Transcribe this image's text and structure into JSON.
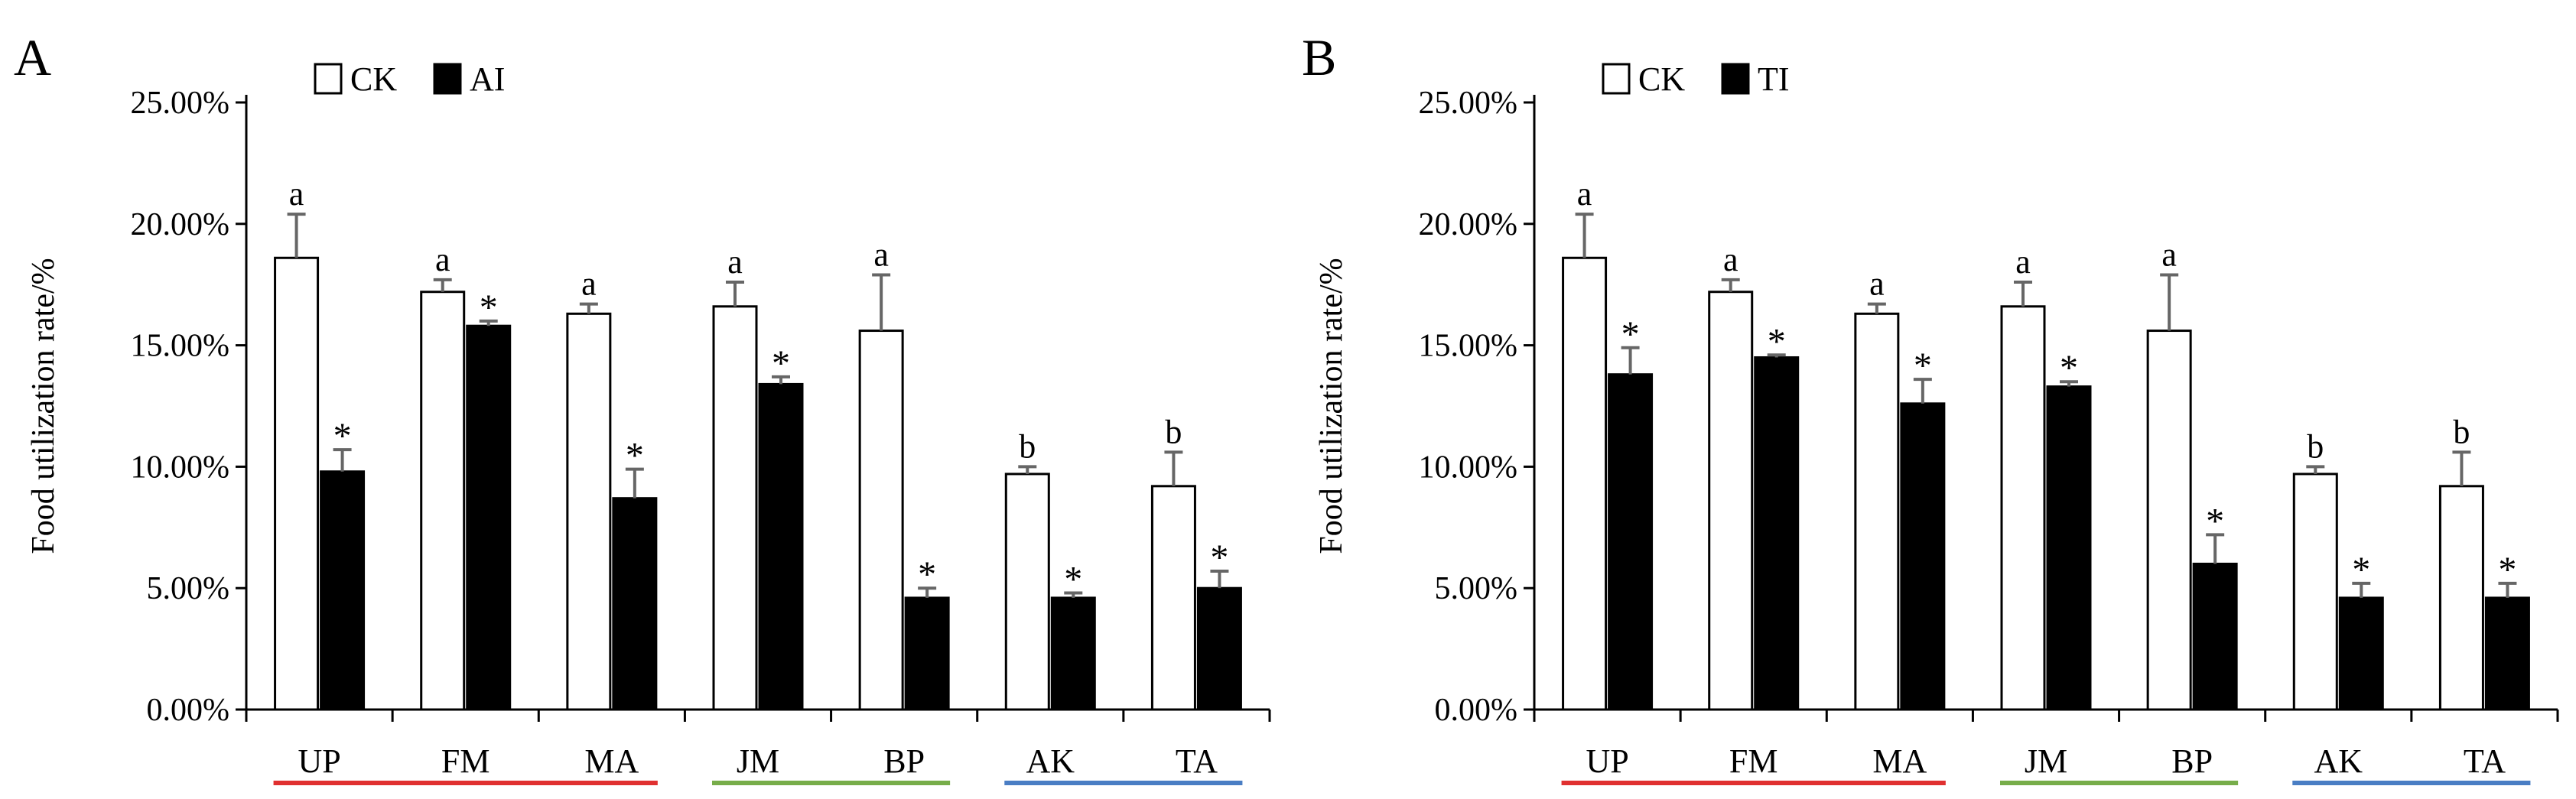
{
  "chart_data": [
    {
      "type": "bar",
      "panel_label": "A",
      "title": "",
      "xlabel": "",
      "ylabel": "Food utilization rate/%",
      "ylim": [
        0,
        25
      ],
      "yticks": [
        "0.00%",
        "5.00%",
        "10.00%",
        "15.00%",
        "20.00%",
        "25.00%"
      ],
      "categories": [
        "UP",
        "FM",
        "MA",
        "JM",
        "BP",
        "AK",
        "TA"
      ],
      "groups": [
        {
          "categories": [
            "UP",
            "FM",
            "MA"
          ],
          "color": "#e03030"
        },
        {
          "categories": [
            "JM",
            "BP"
          ],
          "color": "#77ad4a"
        },
        {
          "categories": [
            "AK",
            "TA"
          ],
          "color": "#4a7ec4"
        }
      ],
      "legend": {
        "position": "top-left",
        "entries": [
          "CK",
          "AI"
        ]
      },
      "series": [
        {
          "name": "CK",
          "fill": "#ffffff",
          "values": [
            18.6,
            17.2,
            16.3,
            16.6,
            15.6,
            9.7,
            9.2
          ],
          "errors": [
            1.8,
            0.5,
            0.4,
            1.0,
            2.3,
            0.3,
            1.4
          ],
          "labels": [
            "a",
            "a",
            "a",
            "a",
            "a",
            "b",
            "b"
          ]
        },
        {
          "name": "AI",
          "fill": "#000000",
          "values": [
            9.8,
            15.8,
            8.7,
            13.4,
            4.6,
            4.6,
            5.0
          ],
          "errors": [
            0.9,
            0.2,
            1.2,
            0.3,
            0.4,
            0.2,
            0.7
          ],
          "labels": [
            "*",
            "*",
            "*",
            "*",
            "*",
            "*",
            "*"
          ]
        }
      ]
    },
    {
      "type": "bar",
      "panel_label": "B",
      "title": "",
      "xlabel": "",
      "ylabel": "Food utilization rate/%",
      "ylim": [
        0,
        25
      ],
      "yticks": [
        "0.00%",
        "5.00%",
        "10.00%",
        "15.00%",
        "20.00%",
        "25.00%"
      ],
      "categories": [
        "UP",
        "FM",
        "MA",
        "JM",
        "BP",
        "AK",
        "TA"
      ],
      "groups": [
        {
          "categories": [
            "UP",
            "FM",
            "MA"
          ],
          "color": "#e03030"
        },
        {
          "categories": [
            "JM",
            "BP"
          ],
          "color": "#77ad4a"
        },
        {
          "categories": [
            "AK",
            "TA"
          ],
          "color": "#4a7ec4"
        }
      ],
      "legend": {
        "position": "top-left",
        "entries": [
          "CK",
          "TI"
        ]
      },
      "series": [
        {
          "name": "CK",
          "fill": "#ffffff",
          "values": [
            18.6,
            17.2,
            16.3,
            16.6,
            15.6,
            9.7,
            9.2
          ],
          "errors": [
            1.8,
            0.5,
            0.4,
            1.0,
            2.3,
            0.3,
            1.4
          ],
          "labels": [
            "a",
            "a",
            "a",
            "a",
            "a",
            "b",
            "b"
          ]
        },
        {
          "name": "TI",
          "fill": "#000000",
          "values": [
            13.8,
            14.5,
            12.6,
            13.3,
            6.0,
            4.6,
            4.6
          ],
          "errors": [
            1.1,
            0.1,
            1.0,
            0.2,
            1.2,
            0.6,
            0.6
          ],
          "labels": [
            "*",
            "*",
            "*",
            "*",
            "*",
            "*",
            "*"
          ]
        }
      ]
    }
  ]
}
